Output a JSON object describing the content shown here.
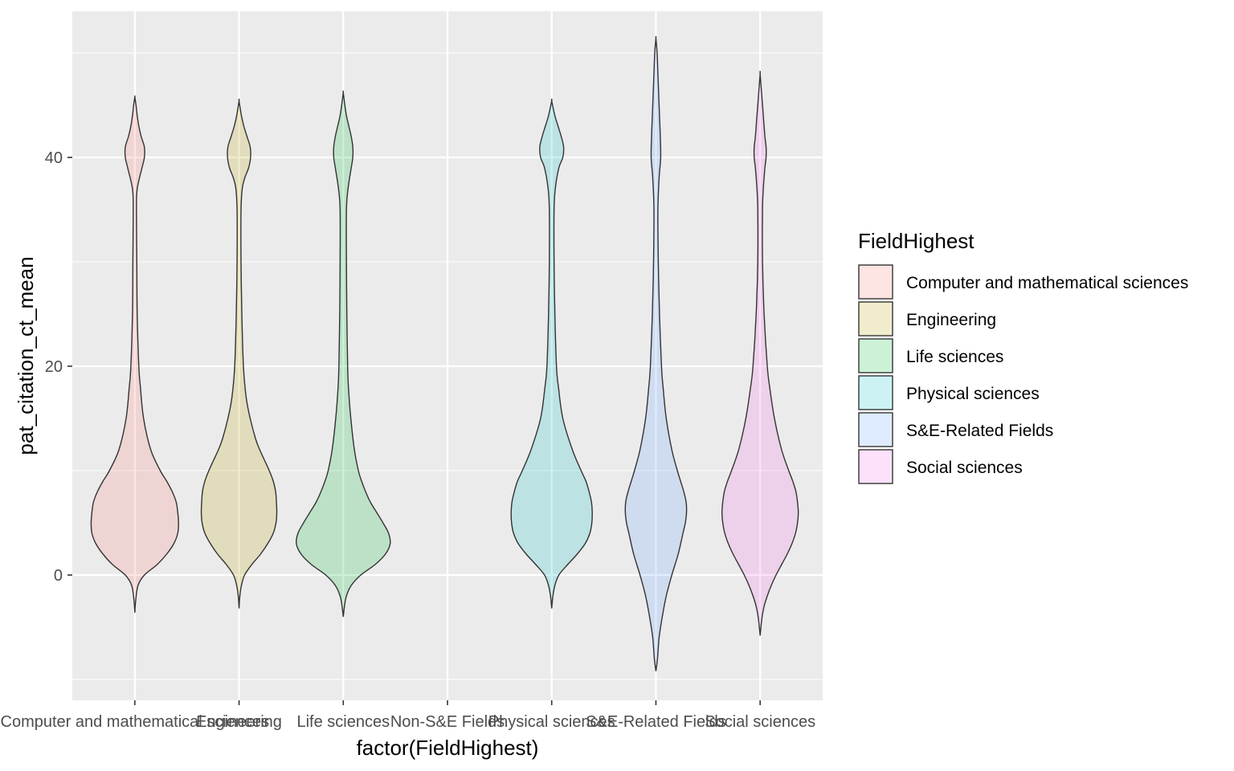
{
  "chart_data": {
    "type": "violin",
    "xlabel": "factor(FieldHighest)",
    "ylabel": "pat_citation_ct_mean",
    "categories": [
      "Computer and mathematical sciences",
      "Engineering",
      "Life sciences",
      "Non-S&E Fields",
      "Physical sciences",
      "S&E-Related Fields",
      "Social sciences"
    ],
    "ylim": [
      -12,
      54
    ],
    "yticks": [
      0,
      20,
      40
    ],
    "yticks_labels": [
      "0",
      "20",
      "40"
    ],
    "grid": true,
    "legend": {
      "title": "FieldHighest",
      "position": "right",
      "entries": [
        {
          "label": "Computer and mathematical sciences",
          "color": "#F8766D"
        },
        {
          "label": "Engineering",
          "color": "#B79F00"
        },
        {
          "label": "Life sciences",
          "color": "#00BA38"
        },
        {
          "label": "Physical sciences",
          "color": "#00BFC4"
        },
        {
          "label": "S&E-Related Fields",
          "color": "#619CFF"
        },
        {
          "label": "Social sciences",
          "color": "#F564E3"
        }
      ]
    },
    "series": [
      {
        "name": "Computer and mathematical sciences",
        "category": "Computer and mathematical sciences",
        "color": "#F8766D",
        "ymin": -3.6,
        "ymax": 45.8,
        "profile": [
          [
            -3.6,
            0
          ],
          [
            -2.5,
            1
          ],
          [
            -1,
            4
          ],
          [
            0,
            12
          ],
          [
            1,
            28
          ],
          [
            2,
            40
          ],
          [
            3,
            49
          ],
          [
            4,
            54
          ],
          [
            5,
            55
          ],
          [
            6,
            54
          ],
          [
            7,
            52
          ],
          [
            8,
            47
          ],
          [
            9,
            40
          ],
          [
            10,
            32
          ],
          [
            12,
            20
          ],
          [
            15,
            11
          ],
          [
            18,
            7
          ],
          [
            20,
            5
          ],
          [
            25,
            3
          ],
          [
            30,
            2.5
          ],
          [
            35,
            2
          ],
          [
            37,
            3
          ],
          [
            39,
            9
          ],
          [
            40,
            12
          ],
          [
            41,
            12
          ],
          [
            42,
            8
          ],
          [
            43,
            5
          ],
          [
            44,
            3
          ],
          [
            45,
            1.5
          ],
          [
            45.8,
            0
          ]
        ]
      },
      {
        "name": "Engineering",
        "category": "Engineering",
        "color": "#B79F00",
        "ymin": -3.2,
        "ymax": 45.4,
        "profile": [
          [
            -3.2,
            0
          ],
          [
            -2,
            1
          ],
          [
            -1,
            3
          ],
          [
            0,
            7
          ],
          [
            1,
            16
          ],
          [
            2,
            27
          ],
          [
            3,
            36
          ],
          [
            4,
            43
          ],
          [
            5,
            46.5
          ],
          [
            6,
            47.5
          ],
          [
            7,
            47
          ],
          [
            8,
            46
          ],
          [
            9,
            43
          ],
          [
            10,
            38
          ],
          [
            11,
            32
          ],
          [
            12,
            26
          ],
          [
            13,
            21
          ],
          [
            15,
            14
          ],
          [
            17,
            9
          ],
          [
            20,
            5.5
          ],
          [
            25,
            3.5
          ],
          [
            30,
            2.5
          ],
          [
            35,
            2.5
          ],
          [
            37,
            4
          ],
          [
            38,
            7
          ],
          [
            39,
            12
          ],
          [
            40,
            14.5
          ],
          [
            41,
            14
          ],
          [
            42,
            10
          ],
          [
            43,
            6
          ],
          [
            44,
            3
          ],
          [
            45.4,
            0
          ]
        ]
      },
      {
        "name": "Life sciences",
        "category": "Life sciences",
        "color": "#00BA38",
        "ymin": -4,
        "ymax": 46.2,
        "profile": [
          [
            -4,
            0
          ],
          [
            -3,
            1.5
          ],
          [
            -2,
            4
          ],
          [
            -1,
            10
          ],
          [
            0,
            22
          ],
          [
            1,
            40
          ],
          [
            2,
            53
          ],
          [
            3,
            59
          ],
          [
            4,
            57
          ],
          [
            5,
            50
          ],
          [
            6,
            42
          ],
          [
            7,
            34
          ],
          [
            8,
            28
          ],
          [
            9,
            23
          ],
          [
            10,
            19
          ],
          [
            12,
            14
          ],
          [
            15,
            9.5
          ],
          [
            18,
            6.5
          ],
          [
            20,
            5.5
          ],
          [
            25,
            4.5
          ],
          [
            30,
            4
          ],
          [
            35,
            4
          ],
          [
            37,
            6
          ],
          [
            39,
            10
          ],
          [
            40,
            12
          ],
          [
            41,
            12
          ],
          [
            42,
            10
          ],
          [
            43,
            7
          ],
          [
            44,
            4
          ],
          [
            45,
            2
          ],
          [
            46.2,
            0
          ]
        ]
      },
      {
        "name": "Physical sciences",
        "category": "Physical sciences",
        "color": "#00BFC4",
        "ymin": -3.2,
        "ymax": 45.4,
        "profile": [
          [
            -3.2,
            0
          ],
          [
            -2,
            1.5
          ],
          [
            -1,
            4
          ],
          [
            0,
            9
          ],
          [
            1,
            20
          ],
          [
            2,
            32
          ],
          [
            3,
            42
          ],
          [
            4,
            48
          ],
          [
            5,
            50.5
          ],
          [
            6,
            51
          ],
          [
            7,
            50
          ],
          [
            8,
            47
          ],
          [
            9,
            43
          ],
          [
            10,
            37
          ],
          [
            12,
            26
          ],
          [
            15,
            14
          ],
          [
            18,
            8.5
          ],
          [
            20,
            6
          ],
          [
            25,
            4
          ],
          [
            30,
            3
          ],
          [
            35,
            3
          ],
          [
            37,
            4.5
          ],
          [
            39,
            9
          ],
          [
            40,
            14
          ],
          [
            41,
            15
          ],
          [
            42,
            12
          ],
          [
            43,
            8
          ],
          [
            44,
            4
          ],
          [
            45.4,
            0
          ]
        ]
      },
      {
        "name": "S&E-Related Fields",
        "category": "S&E-Related Fields",
        "color": "#619CFF",
        "ymin": -9.2,
        "ymax": 51.4,
        "profile": [
          [
            -9.2,
            0
          ],
          [
            -8,
            2
          ],
          [
            -6,
            4
          ],
          [
            -4,
            8
          ],
          [
            -2,
            13
          ],
          [
            0,
            20
          ],
          [
            2,
            28
          ],
          [
            4,
            34
          ],
          [
            5,
            37
          ],
          [
            6,
            38.5
          ],
          [
            7,
            38
          ],
          [
            8,
            35
          ],
          [
            9,
            31
          ],
          [
            10,
            27
          ],
          [
            12,
            20
          ],
          [
            15,
            13
          ],
          [
            18,
            9
          ],
          [
            20,
            7
          ],
          [
            25,
            4.5
          ],
          [
            30,
            3
          ],
          [
            35,
            2.5
          ],
          [
            38,
            4
          ],
          [
            40,
            6
          ],
          [
            42,
            5.5
          ],
          [
            44,
            4.5
          ],
          [
            46,
            3.5
          ],
          [
            48,
            2.5
          ],
          [
            50,
            1.5
          ],
          [
            51.4,
            0
          ]
        ]
      },
      {
        "name": "Social sciences",
        "category": "Social sciences",
        "color": "#F564E3",
        "ymin": -5.8,
        "ymax": 48,
        "profile": [
          [
            -5.8,
            0
          ],
          [
            -5,
            1
          ],
          [
            -4,
            2.5
          ],
          [
            -3,
            5
          ],
          [
            -2,
            9
          ],
          [
            -1,
            14
          ],
          [
            0,
            20
          ],
          [
            1,
            27
          ],
          [
            2,
            34
          ],
          [
            3,
            40
          ],
          [
            4,
            44.5
          ],
          [
            5,
            47
          ],
          [
            6,
            48
          ],
          [
            7,
            47
          ],
          [
            8,
            45
          ],
          [
            9,
            41
          ],
          [
            10,
            36
          ],
          [
            12,
            27
          ],
          [
            15,
            18
          ],
          [
            18,
            12
          ],
          [
            20,
            9
          ],
          [
            25,
            5
          ],
          [
            30,
            3
          ],
          [
            35,
            3
          ],
          [
            37,
            4
          ],
          [
            39,
            6
          ],
          [
            40,
            7.5
          ],
          [
            41,
            7.5
          ],
          [
            42,
            6
          ],
          [
            44,
            4
          ],
          [
            46,
            2
          ],
          [
            48,
            0
          ]
        ]
      }
    ]
  }
}
